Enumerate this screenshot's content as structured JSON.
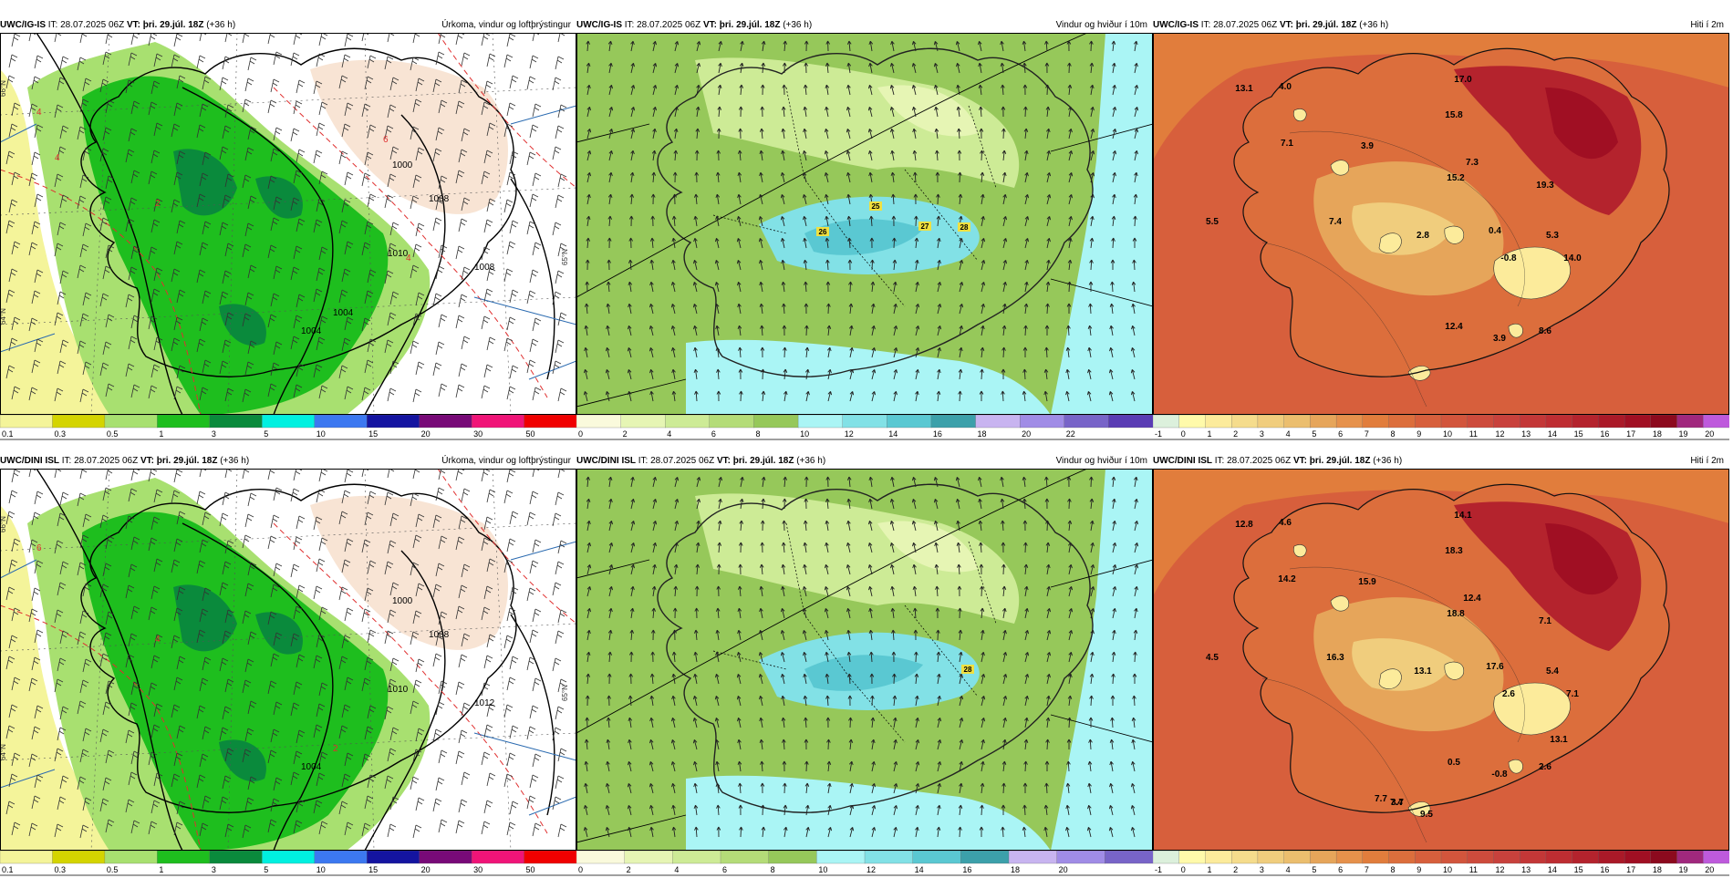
{
  "panels": [
    {
      "model": "UWC/IG-IS",
      "it": " IT: 28.07.2025 06Z ",
      "vt": "VT: þri. 29.júl. 18Z",
      "lead": " (+36 h)",
      "title": "Úrkoma, vindur og loftþrýstingur",
      "kind": "precip",
      "map_labels": [
        "1000",
        "1004",
        "1008",
        "1008",
        "1010",
        "1004",
        "2",
        "4",
        "4",
        "4",
        "6"
      ],
      "side_labels": [
        "66°N",
        "64°N",
        "65°N"
      ],
      "scale_labels": [
        "0.1",
        "0.3",
        "0.5",
        "1",
        "3",
        "5",
        "10",
        "15",
        "20",
        "30",
        "50"
      ],
      "scale_colors": [
        "#f4f49a",
        "#d4d400",
        "#a8e070",
        "#1ebe1e",
        "#0a8a3c",
        "#00f0e0",
        "#3c78f0",
        "#1414a0",
        "#780a78",
        "#f01478",
        "#f00000"
      ]
    },
    {
      "model": "UWC/IG-IS",
      "it": " IT: 28.07.2025 06Z ",
      "vt": "VT: þri. 29.júl. 18Z",
      "lead": " (+36 h)",
      "title": "Vindur og hviður í 10m",
      "kind": "wind",
      "map_labels": [
        "25",
        "26",
        "27",
        "28"
      ],
      "scale_labels": [
        "0",
        "2",
        "4",
        "6",
        "8",
        "10",
        "12",
        "14",
        "16",
        "18",
        "20",
        "22"
      ],
      "scale_colors": [
        "#fafadc",
        "#e6f5b4",
        "#cdeb96",
        "#b4dc78",
        "#96c85a",
        "#aaf5f5",
        "#82e1e6",
        "#5ac8d2",
        "#3ca0aa",
        "#c8b4f0",
        "#a08ce6",
        "#7864c8",
        "#5a3cb4"
      ]
    },
    {
      "model": "UWC/IG-IS",
      "it": " IT: 28.07.2025 06Z ",
      "vt": "VT: þri. 29.júl. 18Z",
      "lead": " (+36 h)",
      "title": "Hiti í 2m",
      "kind": "temp",
      "map_labels": [
        "13.1",
        "4.0",
        "17.0",
        "15.8",
        "7.1",
        "3.9",
        "7.3",
        "15.2",
        "19.3",
        "5.5",
        "7.4",
        "2.8",
        "0.4",
        "5.3",
        "14.0",
        "-0.8",
        "12.4",
        "8.6",
        "3.9"
      ],
      "scale_labels": [
        "-1",
        "0",
        "1",
        "2",
        "3",
        "4",
        "5",
        "6",
        "7",
        "8",
        "9",
        "10",
        "11",
        "12",
        "13",
        "14",
        "15",
        "16",
        "17",
        "18",
        "19",
        "20"
      ],
      "scale_colors": [
        "#dcf0dc",
        "#fffaaa",
        "#fceb9b",
        "#f5dc8c",
        "#f0cd7d",
        "#ebbe6e",
        "#e6a55a",
        "#e6914b",
        "#e17d3c",
        "#dc6e3c",
        "#d75f3c",
        "#d2553c",
        "#cd4b3c",
        "#c8413c",
        "#c33737",
        "#be2d32",
        "#b4232d",
        "#aa1928",
        "#a00f23",
        "#8c0a1e",
        "#a0287d",
        "#be5adc"
      ]
    },
    {
      "model": "UWC/DINI ISL",
      "it": " IT: 28.07.2025 06Z ",
      "vt": "VT: þri. 29.júl. 18Z",
      "lead": " (+36 h)",
      "title": "Úrkoma, vindur og loftþrýstingur",
      "kind": "precip",
      "map_labels": [
        "1000",
        "1004",
        "1008",
        "1012",
        "1010",
        "2",
        "4",
        "6"
      ],
      "side_labels": [
        "66°N",
        "64°N",
        "65°N"
      ],
      "scale_labels": [
        "0.1",
        "0.3",
        "0.5",
        "1",
        "3",
        "5",
        "10",
        "15",
        "20",
        "30",
        "50"
      ],
      "scale_colors": [
        "#f4f49a",
        "#d4d400",
        "#a8e070",
        "#1ebe1e",
        "#0a8a3c",
        "#00f0e0",
        "#3c78f0",
        "#1414a0",
        "#780a78",
        "#f01478",
        "#f00000"
      ]
    },
    {
      "model": "UWC/DINI ISL",
      "it": " IT: 28.07.2025 06Z ",
      "vt": "VT: þri. 29.júl. 18Z",
      "lead": " (+36 h)",
      "title": "Vindur og hviður í 10m",
      "kind": "wind",
      "map_labels": [
        "28"
      ],
      "scale_labels": [
        "0",
        "2",
        "4",
        "6",
        "8",
        "10",
        "12",
        "14",
        "16",
        "18",
        "20"
      ],
      "scale_colors": [
        "#fafadc",
        "#e6f5b4",
        "#cdeb96",
        "#b4dc78",
        "#96c85a",
        "#aaf5f5",
        "#82e1e6",
        "#5ac8d2",
        "#3ca0aa",
        "#c8b4f0",
        "#a08ce6",
        "#7864c8"
      ]
    },
    {
      "model": "UWC/DINI ISL",
      "it": " IT: 28.07.2025 06Z ",
      "vt": "VT: þri. 29.júl. 18Z",
      "lead": " (+36 h)",
      "title": "Hiti í 2m",
      "kind": "temp",
      "map_labels": [
        "12.8",
        "4.6",
        "14.1",
        "18.3",
        "14.2",
        "15.9",
        "12.4",
        "18.8",
        "7.1",
        "4.5",
        "16.3",
        "13.1",
        "17.6",
        "5.4",
        "7.1",
        "2.6",
        "0.5",
        "2.6",
        "-0.8",
        "7.4",
        "7.7",
        "13.1",
        "9.5",
        "3.7"
      ],
      "scale_labels": [
        "-1",
        "0",
        "1",
        "2",
        "3",
        "4",
        "5",
        "6",
        "7",
        "8",
        "9",
        "10",
        "11",
        "12",
        "13",
        "14",
        "15",
        "16",
        "17",
        "18",
        "19",
        "20"
      ],
      "scale_colors": [
        "#dcf0dc",
        "#fffaaa",
        "#fceb9b",
        "#f5dc8c",
        "#f0cd7d",
        "#ebbe6e",
        "#e6a55a",
        "#e6914b",
        "#e17d3c",
        "#dc6e3c",
        "#d75f3c",
        "#d2553c",
        "#cd4b3c",
        "#c8413c",
        "#c33737",
        "#be2d32",
        "#b4232d",
        "#aa1928",
        "#a00f23",
        "#8c0a1e",
        "#a0287d",
        "#be5adc"
      ]
    }
  ]
}
